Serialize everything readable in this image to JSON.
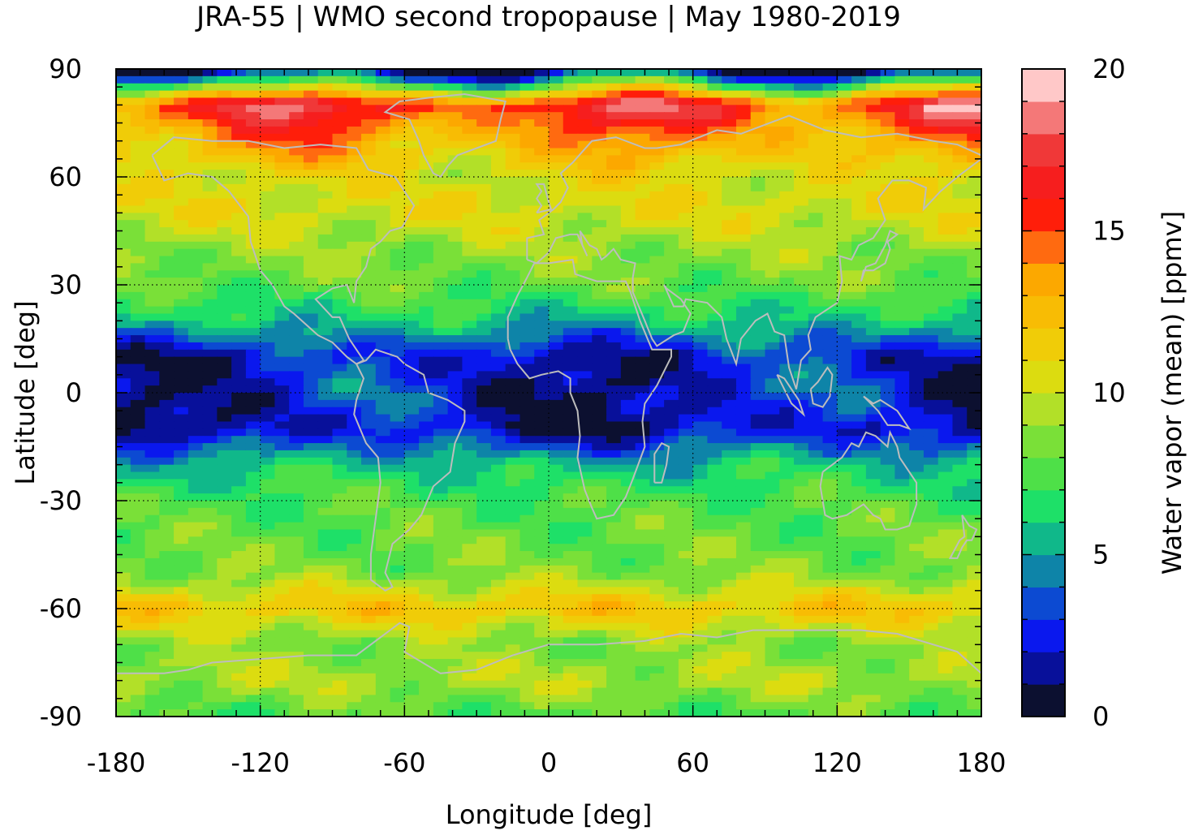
{
  "chart_data": {
    "type": "heatmap",
    "title": "JRA-55 | WMO second tropopause | May 1980-2019",
    "xlabel": "Longitude [deg]",
    "ylabel": "Latitude [deg]",
    "colorbar_label": "Water vapor (mean) [ppmv]",
    "xlim": [
      -180,
      180
    ],
    "ylim": [
      -90,
      90
    ],
    "xticks": [
      -180,
      -120,
      -60,
      0,
      60,
      120,
      180
    ],
    "xtick_labels": [
      "-180",
      "-120",
      "-60",
      "0",
      "60",
      "120",
      "180"
    ],
    "yticks": [
      90,
      60,
      30,
      0,
      -30,
      -60,
      -90
    ],
    "ytick_labels": [
      "90",
      "60",
      "30",
      "0",
      "-30",
      "-60",
      "-90"
    ],
    "colorbar_range": [
      0,
      20
    ],
    "colorbar_ticks": [
      20,
      15,
      10,
      5,
      0
    ],
    "colorbar_tick_labels": [
      "20",
      "15",
      "10",
      "5",
      "0"
    ],
    "grid": true,
    "colormap": [
      "#0c1030",
      "#08109a",
      "#0a18ee",
      "#0c4ad2",
      "#0e84a8",
      "#10b88a",
      "#1ee068",
      "#4ee048",
      "#7ae038",
      "#b2e028",
      "#dcdc10",
      "#f0cc08",
      "#f8bc04",
      "#fca800",
      "#ff6a10",
      "#ff1e0a",
      "#f61e1e",
      "#f03838",
      "#f47878",
      "#ffc8c8"
    ],
    "latitudes": [
      -90,
      -80,
      -70,
      -60,
      -50,
      -40,
      -30,
      -20,
      -10,
      0,
      10,
      20,
      30,
      40,
      50,
      60,
      70,
      80,
      90
    ],
    "zonal_mean_values": [
      7.5,
      9.5,
      8.5,
      12.0,
      8.5,
      8.0,
      7.5,
      6.0,
      2.0,
      3.0,
      2.5,
      6.0,
      8.0,
      9.0,
      10.5,
      10.5,
      13.0,
      16.5,
      0.5
    ]
  }
}
